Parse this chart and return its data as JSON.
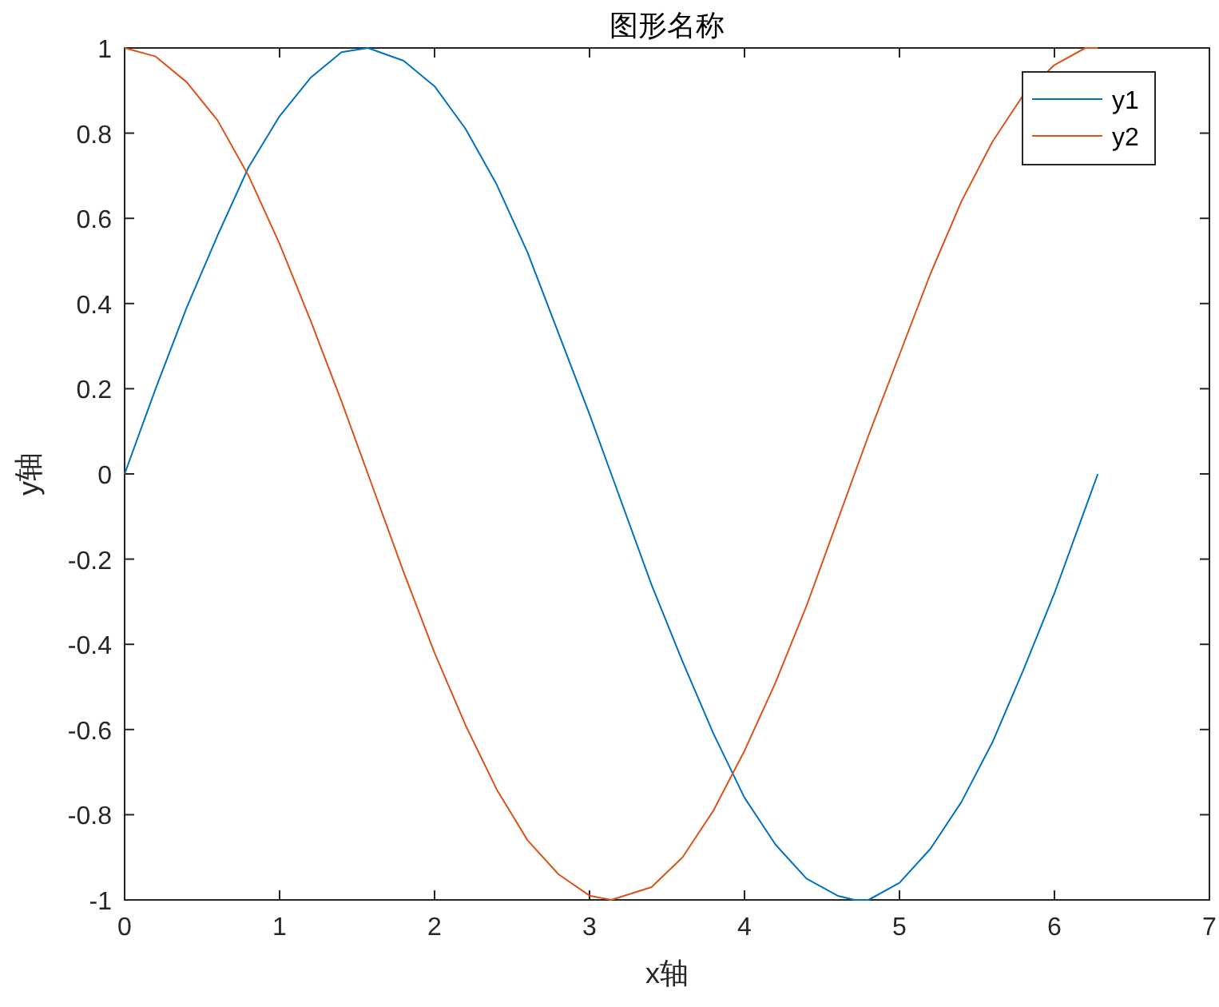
{
  "chart_data": {
    "type": "line",
    "title": "图形名称",
    "xlabel": "x轴",
    "ylabel": "y轴",
    "x": [
      0,
      0.2,
      0.4,
      0.6,
      0.8,
      1.0,
      1.2,
      1.4,
      1.57,
      1.8,
      2.0,
      2.2,
      2.4,
      2.6,
      2.8,
      3.0,
      3.14,
      3.4,
      3.6,
      3.8,
      4.0,
      4.2,
      4.4,
      4.6,
      4.71,
      4.8,
      5.0,
      5.2,
      5.4,
      5.6,
      5.8,
      6.0,
      6.2,
      6.28
    ],
    "series": [
      {
        "name": "y1",
        "color": "#0072bd",
        "values": [
          0,
          0.2,
          0.39,
          0.56,
          0.72,
          0.84,
          0.93,
          0.99,
          1,
          0.97,
          0.91,
          0.81,
          0.68,
          0.52,
          0.33,
          0.14,
          0,
          -0.26,
          -0.44,
          -0.61,
          -0.76,
          -0.87,
          -0.95,
          -0.99,
          -1,
          -1,
          -0.96,
          -0.88,
          -0.77,
          -0.63,
          -0.46,
          -0.28,
          -0.08,
          0
        ]
      },
      {
        "name": "y2",
        "color": "#d95319",
        "values": [
          1,
          0.98,
          0.92,
          0.83,
          0.7,
          0.54,
          0.36,
          0.17,
          0,
          -0.23,
          -0.42,
          -0.59,
          -0.74,
          -0.86,
          -0.94,
          -0.99,
          -1,
          -0.97,
          -0.9,
          -0.79,
          -0.65,
          -0.49,
          -0.31,
          -0.11,
          0,
          0.09,
          0.28,
          0.47,
          0.64,
          0.78,
          0.89,
          0.96,
          1,
          1
        ]
      }
    ],
    "xlim": [
      0,
      7
    ],
    "xticks": [
      0,
      1,
      2,
      3,
      4,
      5,
      6,
      7
    ],
    "ylim": [
      -1,
      1
    ],
    "yticks": [
      -1,
      -0.8,
      -0.6,
      -0.4,
      -0.2,
      0,
      0.2,
      0.4,
      0.6,
      0.8,
      1
    ],
    "legend": "top right",
    "grid": false
  }
}
